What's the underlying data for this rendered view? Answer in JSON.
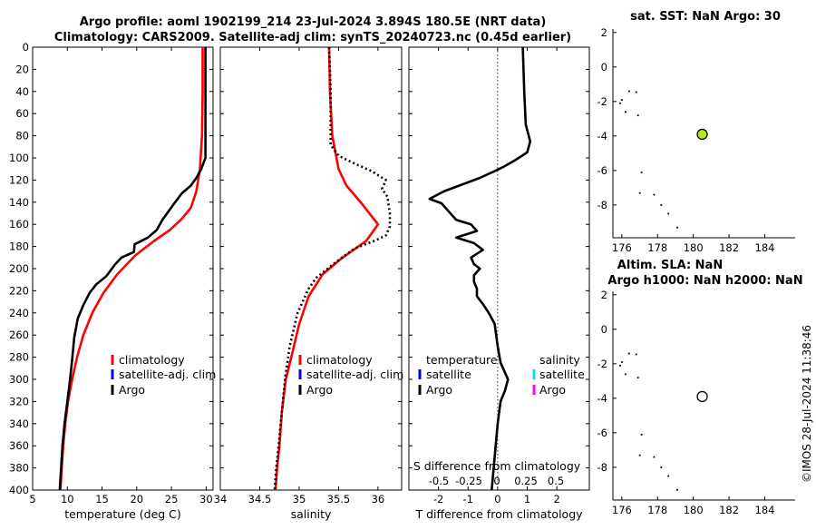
{
  "title_line1": "Argo profile: aoml 1902199_214 23-Jul-2024 3.894S 180.5E (NRT data)",
  "title_line2": "Climatology: CARS2009. Satellite-adj clim: synTS_20240723.nc (0.45d earlier)",
  "copyright": "©IMOS 28-Jul-2024 11:38:46",
  "depth_ticks": [
    "0",
    "20",
    "40",
    "60",
    "80",
    "100",
    "120",
    "140",
    "160",
    "180",
    "200",
    "220",
    "240",
    "260",
    "280",
    "300",
    "320",
    "340",
    "360",
    "380",
    "400"
  ],
  "colors": {
    "climatology": "#ff0000",
    "satellite": "#0000ff",
    "argo": "#000000",
    "sat_sal": "#00e5ff",
    "clim_sal": "#ff00ff",
    "sst_marker": "#b5e61d"
  },
  "chart_data": [
    {
      "id": "temperature",
      "type": "line",
      "xlabel": "temperature (deg C)",
      "ylabel": "depth",
      "xlim": [
        5,
        31
      ],
      "ylim": [
        0,
        400
      ],
      "x_ticks": [
        "5",
        "10",
        "15",
        "20",
        "25",
        "30"
      ],
      "legend": [
        "climatology",
        "satellite-adj. clim",
        "Argo"
      ],
      "series": [
        {
          "name": "climatology",
          "points": [
            [
              29.5,
              0
            ],
            [
              29.5,
              40
            ],
            [
              29.4,
              80
            ],
            [
              29.1,
              110
            ],
            [
              28.6,
              130
            ],
            [
              27.8,
              145
            ],
            [
              26.5,
              155
            ],
            [
              24.8,
              165
            ],
            [
              22.5,
              175
            ],
            [
              19.8,
              188
            ],
            [
              17.2,
              205
            ],
            [
              15.2,
              222
            ],
            [
              13.6,
              240
            ],
            [
              12.3,
              260
            ],
            [
              11.4,
              280
            ],
            [
              10.7,
              300
            ],
            [
              10.1,
              320
            ],
            [
              9.7,
              340
            ],
            [
              9.4,
              360
            ],
            [
              9.2,
              380
            ],
            [
              9.0,
              400
            ]
          ]
        },
        {
          "name": "Argo",
          "points": [
            [
              29.9,
              0
            ],
            [
              29.9,
              60
            ],
            [
              29.9,
              100
            ],
            [
              29.3,
              110
            ],
            [
              28.6,
              118
            ],
            [
              27.8,
              125
            ],
            [
              26.5,
              132
            ],
            [
              25.3,
              142
            ],
            [
              23.7,
              156
            ],
            [
              22.9,
              165
            ],
            [
              21.6,
              172
            ],
            [
              19.7,
              178
            ],
            [
              19.6,
              185
            ],
            [
              17.8,
              190
            ],
            [
              16.9,
              196
            ],
            [
              16.2,
              202
            ],
            [
              15.6,
              207
            ],
            [
              14.2,
              214
            ],
            [
              13.2,
              222
            ],
            [
              12.3,
              233
            ],
            [
              11.5,
              245
            ],
            [
              11.0,
              262
            ],
            [
              10.7,
              282
            ],
            [
              10.4,
              300
            ],
            [
              10.0,
              320
            ],
            [
              9.6,
              340
            ],
            [
              9.3,
              360
            ],
            [
              9.1,
              380
            ],
            [
              8.9,
              400
            ]
          ]
        }
      ]
    },
    {
      "id": "salinity",
      "type": "line",
      "xlabel": "salinity",
      "xlim": [
        34,
        36.3
      ],
      "ylim": [
        0,
        400
      ],
      "x_ticks": [
        "34",
        "34.5",
        "35",
        "35.5",
        "36"
      ],
      "legend": [
        "climatology",
        "satellite-adj. clim",
        "Argo"
      ],
      "series": [
        {
          "name": "climatology",
          "points": [
            [
              35.38,
              0
            ],
            [
              35.39,
              40
            ],
            [
              35.42,
              80
            ],
            [
              35.5,
              110
            ],
            [
              35.6,
              125
            ],
            [
              35.78,
              140
            ],
            [
              36.0,
              160
            ],
            [
              35.85,
              175
            ],
            [
              35.55,
              190
            ],
            [
              35.3,
              205
            ],
            [
              35.12,
              225
            ],
            [
              35.0,
              250
            ],
            [
              34.9,
              280
            ],
            [
              34.83,
              300
            ],
            [
              34.78,
              330
            ],
            [
              34.75,
              360
            ],
            [
              34.72,
              380
            ],
            [
              34.7,
              400
            ]
          ]
        },
        {
          "name": "Argo",
          "points": [
            [
              35.38,
              0
            ],
            [
              35.4,
              40
            ],
            [
              35.4,
              88
            ],
            [
              35.5,
              98
            ],
            [
              35.7,
              105
            ],
            [
              35.92,
              112
            ],
            [
              36.1,
              120
            ],
            [
              36.05,
              128
            ],
            [
              36.12,
              135
            ],
            [
              36.15,
              150
            ],
            [
              36.15,
              162
            ],
            [
              36.1,
              170
            ],
            [
              35.95,
              175
            ],
            [
              35.7,
              182
            ],
            [
              35.45,
              195
            ],
            [
              35.22,
              208
            ],
            [
              35.12,
              218
            ],
            [
              34.98,
              240
            ],
            [
              34.88,
              270
            ],
            [
              34.82,
              300
            ],
            [
              34.78,
              330
            ],
            [
              34.74,
              360
            ],
            [
              34.71,
              380
            ],
            [
              34.69,
              400
            ]
          ]
        }
      ]
    },
    {
      "id": "difference",
      "type": "line",
      "xlabel": "T difference from climatology",
      "xlabel_top": "S difference from climatology",
      "xlim": [
        -3,
        3.1
      ],
      "ylim": [
        0,
        400
      ],
      "x_ticks": [
        "-2",
        "-1",
        "0",
        "1",
        "2"
      ],
      "s_ticks": [
        "-0.5",
        "-0.25",
        "0",
        "0.25",
        "0.5"
      ],
      "legend_left": [
        "temperature",
        "satellite",
        "Argo"
      ],
      "legend_right": [
        "salinity",
        "satellite",
        "Argo"
      ],
      "series": [
        {
          "name": "Argo T difference",
          "points": [
            [
              0.85,
              0
            ],
            [
              0.9,
              40
            ],
            [
              0.95,
              70
            ],
            [
              1.1,
              85
            ],
            [
              1.0,
              95
            ],
            [
              0.6,
              102
            ],
            [
              0.2,
              108
            ],
            [
              -0.1,
              112
            ],
            [
              -0.6,
              118
            ],
            [
              -1.2,
              124
            ],
            [
              -1.8,
              130
            ],
            [
              -2.3,
              137
            ],
            [
              -1.9,
              141
            ],
            [
              -1.6,
              150
            ],
            [
              -1.4,
              156
            ],
            [
              -0.9,
              160
            ],
            [
              -0.7,
              166
            ],
            [
              -1.4,
              172
            ],
            [
              -0.8,
              177
            ],
            [
              -0.5,
              183
            ],
            [
              -0.9,
              190
            ],
            [
              -0.8,
              196
            ],
            [
              -0.6,
              200
            ],
            [
              -0.8,
              206
            ],
            [
              -0.8,
              212
            ],
            [
              -0.7,
              218
            ],
            [
              -0.7,
              225
            ],
            [
              -0.5,
              232
            ],
            [
              -0.3,
              240
            ],
            [
              -0.1,
              250
            ],
            [
              0.0,
              270
            ],
            [
              0.1,
              285
            ],
            [
              0.35,
              300
            ],
            [
              0.25,
              310
            ],
            [
              0.1,
              320
            ],
            [
              0.0,
              340
            ],
            [
              -0.1,
              370
            ],
            [
              -0.2,
              400
            ]
          ]
        }
      ]
    },
    {
      "id": "sst_map",
      "type": "scatter",
      "title": "sat. SST: NaN Argo: 30",
      "xlim": [
        175.5,
        185.7
      ],
      "ylim": [
        -9.9,
        2.2
      ],
      "x_ticks": [
        "176",
        "178",
        "180",
        "182",
        "184"
      ],
      "y_ticks": [
        "2",
        "0",
        "-2",
        "-4",
        "-6",
        "-8"
      ],
      "argo_point": [
        180.5,
        -3.9
      ],
      "track": [
        [
          176.4,
          -1.4
        ],
        [
          176.8,
          -1.45
        ],
        [
          176.0,
          -1.9
        ],
        [
          175.9,
          -2.1
        ],
        [
          176.2,
          -2.6
        ],
        [
          176.9,
          -2.8
        ],
        [
          177.1,
          -6.1
        ],
        [
          177.0,
          -7.3
        ],
        [
          177.8,
          -7.4
        ],
        [
          178.2,
          -8.0
        ],
        [
          178.6,
          -8.5
        ],
        [
          179.1,
          -9.3
        ]
      ]
    },
    {
      "id": "sla_map",
      "type": "scatter",
      "title_line1": "Altim. SLA: NaN",
      "title_line2": "Argo h1000: NaN h2000: NaN",
      "xlim": [
        175.5,
        185.7
      ],
      "ylim": [
        -9.9,
        2.2
      ],
      "x_ticks": [
        "176",
        "178",
        "180",
        "182",
        "184"
      ],
      "y_ticks": [
        "2",
        "0",
        "-2",
        "-4",
        "-6",
        "-8"
      ],
      "argo_point": [
        180.5,
        -3.9
      ],
      "track": [
        [
          176.4,
          -1.4
        ],
        [
          176.8,
          -1.45
        ],
        [
          176.0,
          -1.9
        ],
        [
          175.9,
          -2.1
        ],
        [
          176.2,
          -2.6
        ],
        [
          176.9,
          -2.8
        ],
        [
          177.1,
          -6.1
        ],
        [
          177.0,
          -7.3
        ],
        [
          177.8,
          -7.4
        ],
        [
          178.2,
          -8.0
        ],
        [
          178.6,
          -8.5
        ],
        [
          179.1,
          -9.3
        ]
      ]
    }
  ]
}
